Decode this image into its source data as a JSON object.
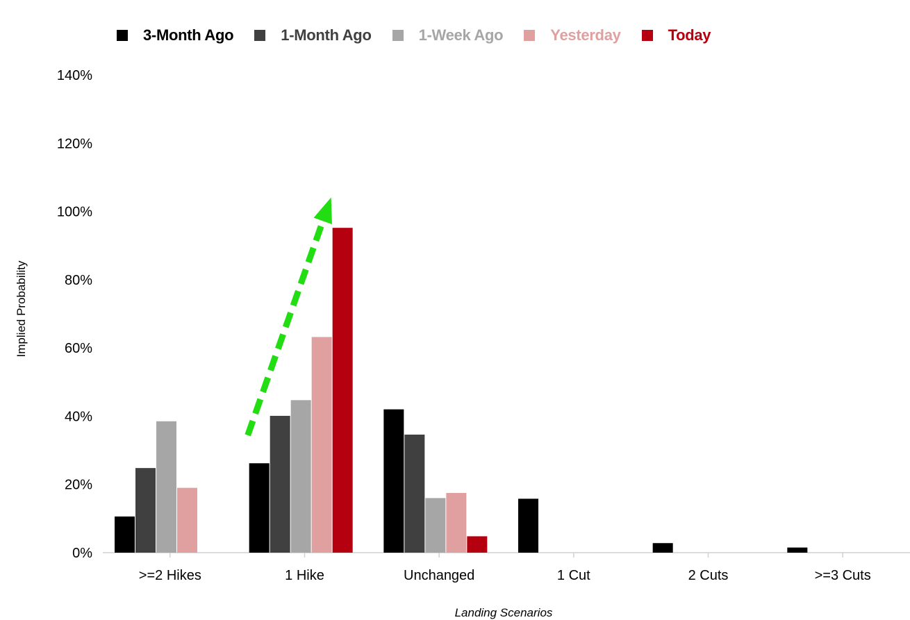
{
  "chart_data": {
    "type": "bar",
    "xlabel": "Landing Scenarios",
    "ylabel": "Implied Probability",
    "ylim": [
      0,
      1.4
    ],
    "yticks": [
      0,
      0.2,
      0.4,
      0.6,
      0.8,
      1.0,
      1.2,
      1.4
    ],
    "ytick_labels": [
      "0%",
      "20%",
      "40%",
      "60%",
      "80%",
      "100%",
      "120%",
      "140%"
    ],
    "categories": [
      ">=2 Hikes",
      "1 Hike",
      "Unchanged",
      "1 Cut",
      "2 Cuts",
      ">=3 Cuts"
    ],
    "series": [
      {
        "name": "3-Month Ago",
        "color": "#000000",
        "values": [
          0.106,
          0.262,
          0.42,
          0.158,
          0.028,
          0.015
        ]
      },
      {
        "name": "1-Month Ago",
        "color": "#404040",
        "values": [
          0.248,
          0.401,
          0.346,
          0.0,
          0.0,
          0.0
        ]
      },
      {
        "name": "1-Week Ago",
        "color": "#a6a6a6",
        "values": [
          0.385,
          0.447,
          0.16,
          0.0,
          0.0,
          0.0
        ]
      },
      {
        "name": "Yesterday",
        "color": "#e0a0a0",
        "values": [
          0.19,
          0.632,
          0.175,
          0.0,
          0.0,
          0.0
        ]
      },
      {
        "name": "Today",
        "color": "#b5000f",
        "values": [
          0.0,
          0.952,
          0.048,
          0.0,
          0.0,
          0.0
        ]
      }
    ],
    "legend_position": "top",
    "grid": false,
    "annotations": [
      {
        "type": "dashed-arrow",
        "color": "#22dd11",
        "from": {
          "category": "1 Hike",
          "value": 0.34
        },
        "to": {
          "category": "1 Hike",
          "value": 1.05
        }
      }
    ]
  }
}
